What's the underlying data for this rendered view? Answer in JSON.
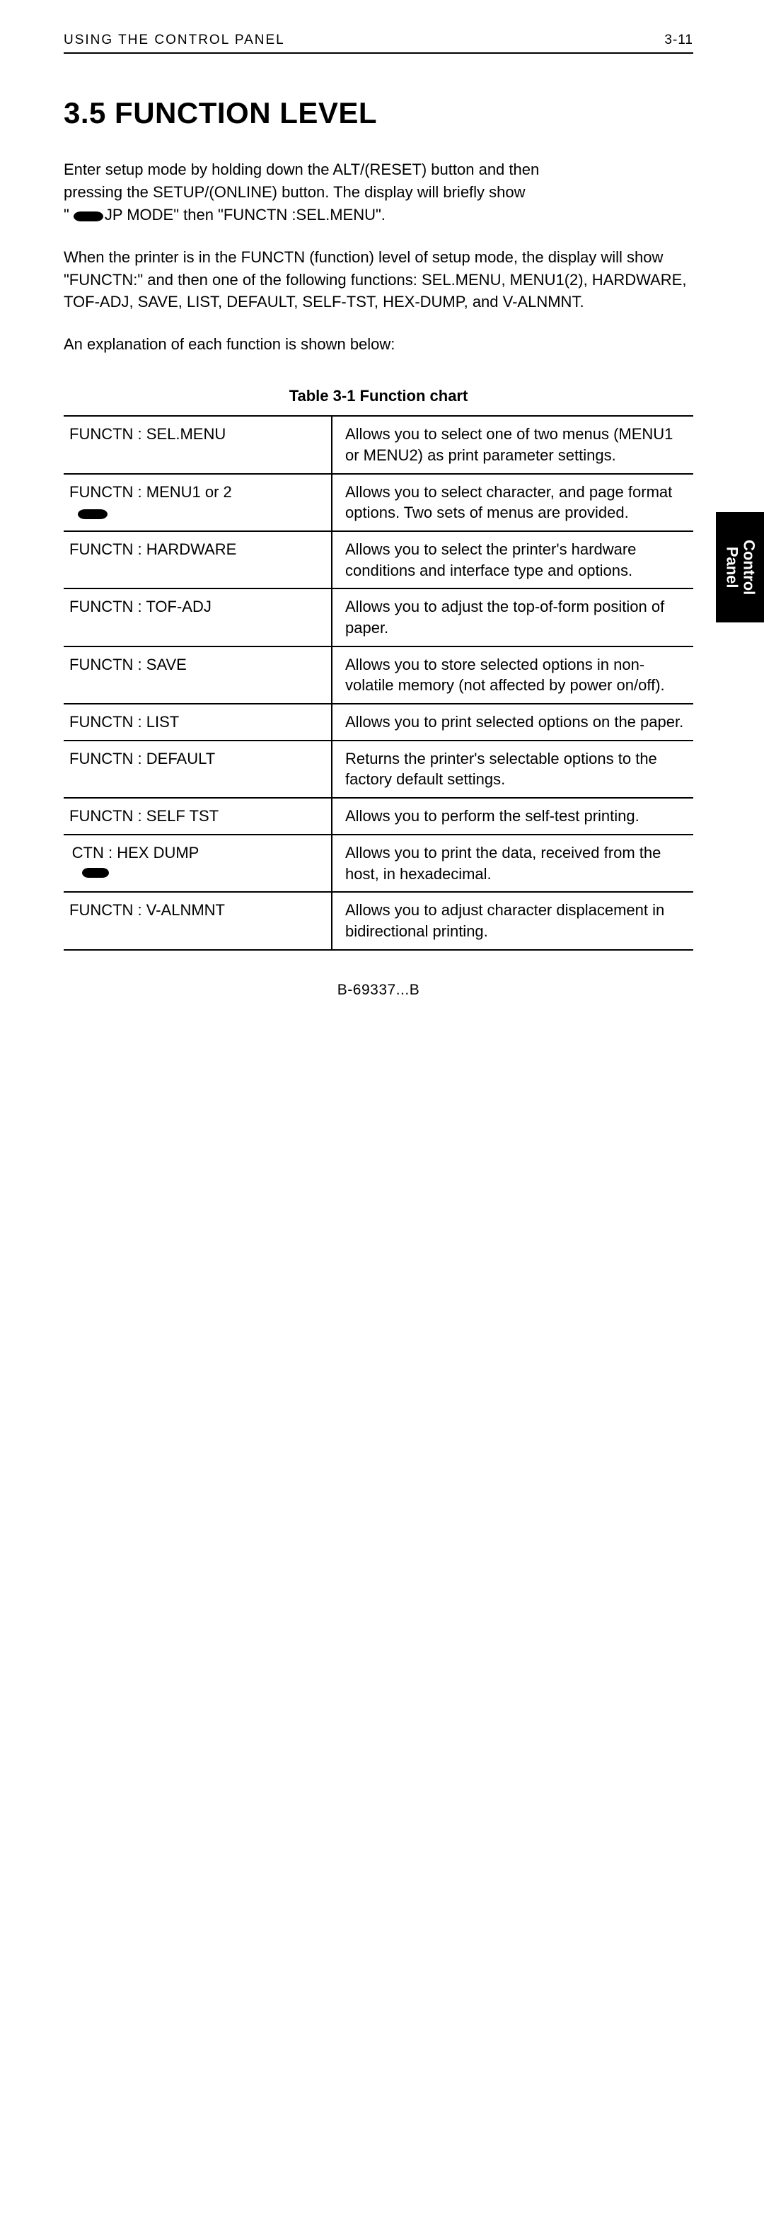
{
  "header": {
    "left": "USING  THE  CONTROL  PANEL",
    "right": "3-11"
  },
  "section_title": "3.5  FUNCTION  LEVEL",
  "paras": {
    "p1_a": "Enter setup mode by holding down the ALT/(RESET) button and then",
    "p1_b": "pressing the SETUP/(ONLINE) button.  The display will briefly show",
    "p1_c_prefix": "\"",
    "p1_c_suffix": "JP MODE\" then \"FUNCTN :SEL.MENU\".",
    "p2": "When the printer is in the FUNCTN (function) level of setup mode, the display will show \"FUNCTN:\" and then one of the following functions: SEL.MENU, MENU1(2), HARDWARE, TOF-ADJ, SAVE, LIST, DEFAULT, SELF-TST, HEX-DUMP, and V-ALNMNT.",
    "p3": "An explanation of each function is shown below:"
  },
  "table": {
    "caption": "Table 3-1   Function chart",
    "rows": [
      {
        "name": "FUNCTN : SEL.MENU",
        "desc": "Allows you to select one of two menus (MENU1 or MENU2) as print parameter settings.",
        "punch": false
      },
      {
        "name": "FUNCTN : MENU1 or 2",
        "desc": "Allows you to select character, and page format options.  Two sets of menus are provided.",
        "punch": true
      },
      {
        "name": "FUNCTN : HARDWARE",
        "desc": "Allows you to select the printer's hardware conditions and interface type and options.",
        "punch": false
      },
      {
        "name": "FUNCTN : TOF-ADJ",
        "desc": "Allows you to adjust the top-of-form position of paper.",
        "punch": false
      },
      {
        "name": "FUNCTN : SAVE",
        "desc": "Allows you to store selected options in non-volatile memory (not affected by power on/off).",
        "punch": false
      },
      {
        "name": "FUNCTN : LIST",
        "desc": "Allows you to print selected options on the paper.",
        "punch": false
      },
      {
        "name": "FUNCTN : DEFAULT",
        "desc": "Returns the printer's selectable options to the factory default settings.",
        "punch": false
      },
      {
        "name": "FUNCTN : SELF  TST",
        "desc": "Allows you to perform the self-test printing.",
        "punch": false
      },
      {
        "name": "  CTN : HEX  DUMP",
        "desc": "Allows you to print the data, received from the host, in hexadecimal.",
        "punch": true,
        "punch_small": true
      },
      {
        "name": "FUNCTN : V-ALNMNT",
        "desc": "Allows you to adjust character displacement in bidirectional printing.",
        "punch": false
      }
    ]
  },
  "footer_code": "B-69337...B",
  "side_tab": {
    "line1": "Control",
    "line2": "Panel"
  },
  "colors": {
    "text": "#000000",
    "background": "#ffffff",
    "tab_bg": "#000000",
    "tab_fg": "#ffffff",
    "rule": "#000000"
  }
}
